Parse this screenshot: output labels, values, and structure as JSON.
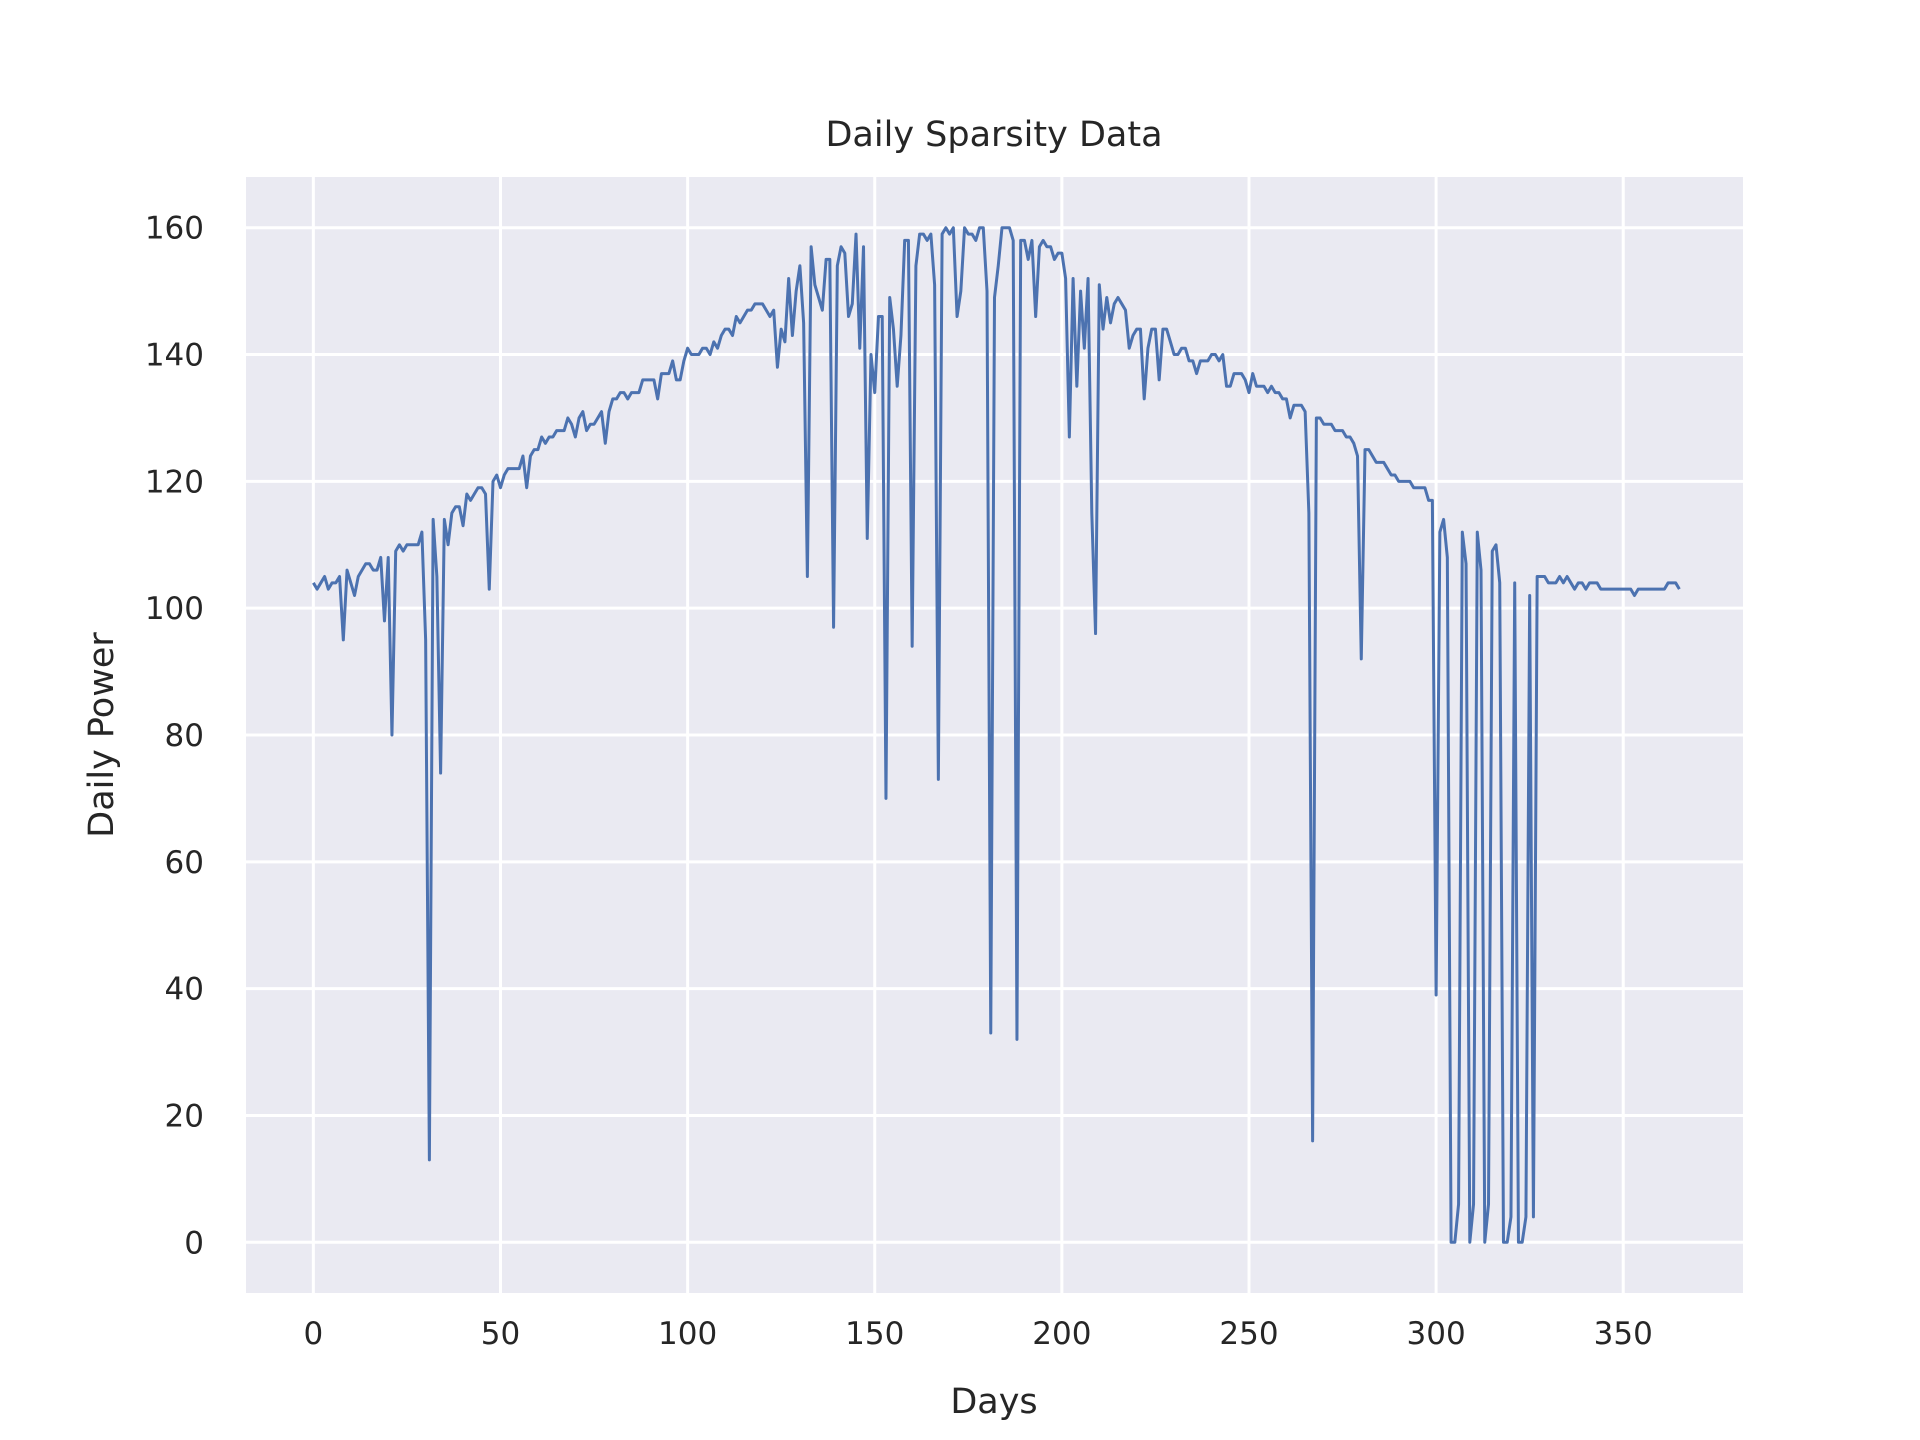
{
  "chart_data": {
    "type": "line",
    "title": "Daily Sparsity Data",
    "xlabel": "Days",
    "ylabel": "Daily Power",
    "xlim": [
      -18,
      382
    ],
    "ylim": [
      -8,
      168
    ],
    "xticks": [
      0,
      50,
      100,
      150,
      200,
      250,
      300,
      350
    ],
    "yticks": [
      0,
      20,
      40,
      60,
      80,
      100,
      120,
      140,
      160
    ],
    "grid": true,
    "background": "#EAEAF2",
    "color": "#4C72B0",
    "series": [
      {
        "x": [
          0,
          1,
          2,
          3,
          4,
          5,
          6,
          7,
          8,
          9,
          10,
          11,
          12,
          13,
          14,
          15,
          16,
          17,
          18,
          19,
          20,
          21,
          22,
          23,
          24,
          25,
          26,
          27,
          28,
          29,
          30,
          31,
          32,
          33,
          34,
          35,
          36,
          37,
          38,
          39,
          40,
          41,
          42,
          43,
          44,
          45,
          46,
          47,
          48,
          49,
          50,
          51,
          52,
          53,
          54,
          55,
          56,
          57,
          58,
          59,
          60,
          61,
          62,
          63,
          64,
          65,
          66,
          67,
          68,
          69,
          70,
          71,
          72,
          73,
          74,
          75,
          76,
          77,
          78,
          79,
          80,
          81,
          82,
          83,
          84,
          85,
          86,
          87,
          88,
          89,
          90,
          91,
          92,
          93,
          94,
          95,
          96,
          97,
          98,
          99,
          100,
          101,
          102,
          103,
          104,
          105,
          106,
          107,
          108,
          109,
          110,
          111,
          112,
          113,
          114,
          115,
          116,
          117,
          118,
          119,
          120,
          121,
          122,
          123,
          124,
          125,
          126,
          127,
          128,
          129,
          130,
          131,
          132,
          133,
          134,
          135,
          136,
          137,
          138,
          139,
          140,
          141,
          142,
          143,
          144,
          145,
          146,
          147,
          148,
          149,
          150,
          151,
          152,
          153,
          154,
          155,
          156,
          157,
          158,
          159,
          160,
          161,
          162,
          163,
          164,
          165,
          166,
          167,
          168,
          169,
          170,
          171,
          172,
          173,
          174,
          175,
          176,
          177,
          178,
          179,
          180,
          181,
          182,
          183,
          184,
          185,
          186,
          187,
          188,
          189,
          190,
          191,
          192,
          193,
          194,
          195,
          196,
          197,
          198,
          199,
          200,
          201,
          202,
          203,
          204,
          205,
          206,
          207,
          208,
          209,
          210,
          211,
          212,
          213,
          214,
          215,
          216,
          217,
          218,
          219,
          220,
          221,
          222,
          223,
          224,
          225,
          226,
          227,
          228,
          229,
          230,
          231,
          232,
          233,
          234,
          235,
          236,
          237,
          238,
          239,
          240,
          241,
          242,
          243,
          244,
          245,
          246,
          247,
          248,
          249,
          250,
          251,
          252,
          253,
          254,
          255,
          256,
          257,
          258,
          259,
          260,
          261,
          262,
          263,
          264,
          265,
          266,
          267,
          268,
          269,
          270,
          271,
          272,
          273,
          274,
          275,
          276,
          277,
          278,
          279,
          280,
          281,
          282,
          283,
          284,
          285,
          286,
          287,
          288,
          289,
          290,
          291,
          292,
          293,
          294,
          295,
          296,
          297,
          298,
          299,
          300,
          301,
          302,
          303,
          304,
          305,
          306,
          307,
          308,
          309,
          310,
          311,
          312,
          313,
          314,
          315,
          316,
          317,
          318,
          319,
          320,
          321,
          322,
          323,
          324,
          325,
          326,
          327,
          328,
          329,
          330,
          331,
          332,
          333,
          334,
          335,
          336,
          337,
          338,
          339,
          340,
          341,
          342,
          343,
          344,
          345,
          346,
          347,
          348,
          349,
          350,
          351,
          352,
          353,
          354,
          355,
          356,
          357,
          358,
          359,
          360,
          361,
          362,
          363,
          364,
          365
        ],
        "y": [
          104,
          103,
          104,
          105,
          103,
          104,
          104,
          105,
          95,
          106,
          104,
          102,
          105,
          106,
          107,
          107,
          106,
          106,
          108,
          98,
          108,
          80,
          109,
          110,
          109,
          110,
          110,
          110,
          110,
          112,
          95,
          13,
          114,
          105,
          74,
          114,
          110,
          115,
          116,
          116,
          113,
          118,
          117,
          118,
          119,
          119,
          118,
          103,
          120,
          121,
          119,
          121,
          122,
          122,
          122,
          122,
          124,
          119,
          124,
          125,
          125,
          127,
          126,
          127,
          127,
          128,
          128,
          128,
          130,
          129,
          127,
          130,
          131,
          128,
          129,
          129,
          130,
          131,
          126,
          131,
          133,
          133,
          134,
          134,
          133,
          134,
          134,
          134,
          136,
          136,
          136,
          136,
          133,
          137,
          137,
          137,
          139,
          136,
          136,
          139,
          141,
          140,
          140,
          140,
          141,
          141,
          140,
          142,
          141,
          143,
          144,
          144,
          143,
          146,
          145,
          146,
          147,
          147,
          148,
          148,
          148,
          147,
          146,
          147,
          138,
          144,
          142,
          152,
          143,
          150,
          154,
          145,
          105,
          157,
          151,
          149,
          147,
          155,
          155,
          97,
          154,
          157,
          156,
          146,
          148,
          159,
          141,
          157,
          111,
          140,
          134,
          146,
          146,
          70,
          149,
          144,
          135,
          143,
          158,
          158,
          94,
          154,
          159,
          159,
          158,
          159,
          151,
          73,
          159,
          160,
          159,
          160,
          146,
          150,
          160,
          159,
          159,
          158,
          160,
          160,
          150,
          33,
          149,
          154,
          160,
          160,
          160,
          158,
          32,
          158,
          158,
          155,
          158,
          146,
          157,
          158,
          157,
          157,
          155,
          156,
          156,
          152,
          127,
          152,
          135,
          150,
          141,
          152,
          115,
          96,
          151,
          144,
          149,
          145,
          148,
          149,
          148,
          147,
          141,
          143,
          144,
          144,
          133,
          141,
          144,
          144,
          136,
          144,
          144,
          142,
          140,
          140,
          141,
          141,
          139,
          139,
          137,
          139,
          139,
          139,
          140,
          140,
          139,
          140,
          135,
          135,
          137,
          137,
          137,
          136,
          134,
          137,
          135,
          135,
          135,
          134,
          135,
          134,
          134,
          133,
          133,
          130,
          132,
          132,
          132,
          131,
          115,
          16,
          130,
          130,
          129,
          129,
          129,
          128,
          128,
          128,
          127,
          127,
          126,
          124,
          92,
          125,
          125,
          124,
          123,
          123,
          123,
          122,
          121,
          121,
          120,
          120,
          120,
          120,
          119,
          119,
          119,
          119,
          117,
          117,
          39,
          112,
          114,
          108,
          0,
          0,
          6,
          112,
          107,
          0,
          6,
          112,
          106,
          0,
          6,
          109,
          110,
          104,
          0,
          0,
          4,
          104,
          0,
          0,
          4,
          102,
          4,
          105,
          105,
          105,
          104,
          104,
          104,
          105,
          104,
          105,
          104,
          103,
          104,
          104,
          103,
          104,
          104,
          104,
          103,
          103,
          103,
          103,
          103,
          103,
          103,
          103,
          103,
          102,
          103,
          103,
          103,
          103,
          103,
          103,
          103,
          103,
          104,
          104,
          104,
          103
        ]
      }
    ]
  }
}
